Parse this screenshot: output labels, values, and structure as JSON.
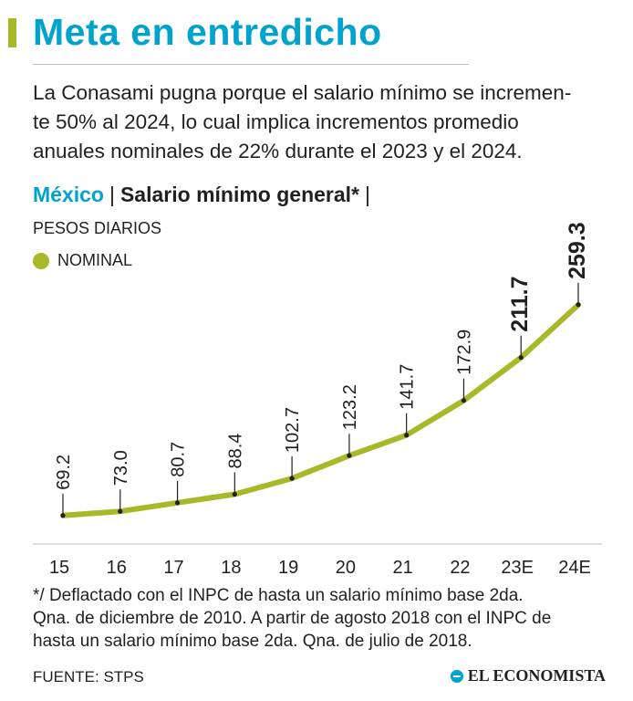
{
  "header": {
    "title": "Meta en entredicho",
    "lead_lines": [
      "La Conasami pugna porque el salario mínimo se incremen-",
      "te 50% al 2024, lo cual implica incrementos promedio",
      "anuales nominales de 22% durante el 2023 y el 2024."
    ]
  },
  "subtitle": {
    "country": "México",
    "separator": "|",
    "series_title": "Salario mínimo general*",
    "trailing": "|"
  },
  "units": "PESOS DIARIOS",
  "legend": {
    "label": "NOMINAL"
  },
  "colors": {
    "accent": "#00a3cc",
    "series": "#a8b828",
    "text": "#231f20"
  },
  "chart_data": {
    "type": "line",
    "title": "Salario mínimo general*",
    "ylabel": "PESOS DIARIOS",
    "xlabel": "",
    "categories": [
      "15",
      "16",
      "17",
      "18",
      "19",
      "20",
      "21",
      "22",
      "23E",
      "24E"
    ],
    "series": [
      {
        "name": "NOMINAL",
        "values": [
          69.2,
          73.0,
          80.7,
          88.4,
          102.7,
          123.2,
          141.7,
          172.9,
          211.7,
          259.3
        ]
      }
    ],
    "value_labels": [
      "69.2",
      "73.0",
      "80.7",
      "88.4",
      "102.7",
      "123.2",
      "141.7",
      "172.9",
      "211.7",
      "259.3"
    ],
    "emphasized_labels": [
      "211.7",
      "259.3"
    ],
    "ylim": [
      60,
      260
    ],
    "grid": false,
    "legend_position": "top-left"
  },
  "footnote_lines": [
    "*/ Deflactado con el INPC de hasta un salario mínimo base 2da.",
    "Qna. de diciembre de 2010. A partir de agosto 2018 con el INPC de",
    "hasta un salario mínimo base 2da. Qna. de julio de 2018."
  ],
  "source": "FUENTE: STPS",
  "brand": "EL ECONOMISTA"
}
